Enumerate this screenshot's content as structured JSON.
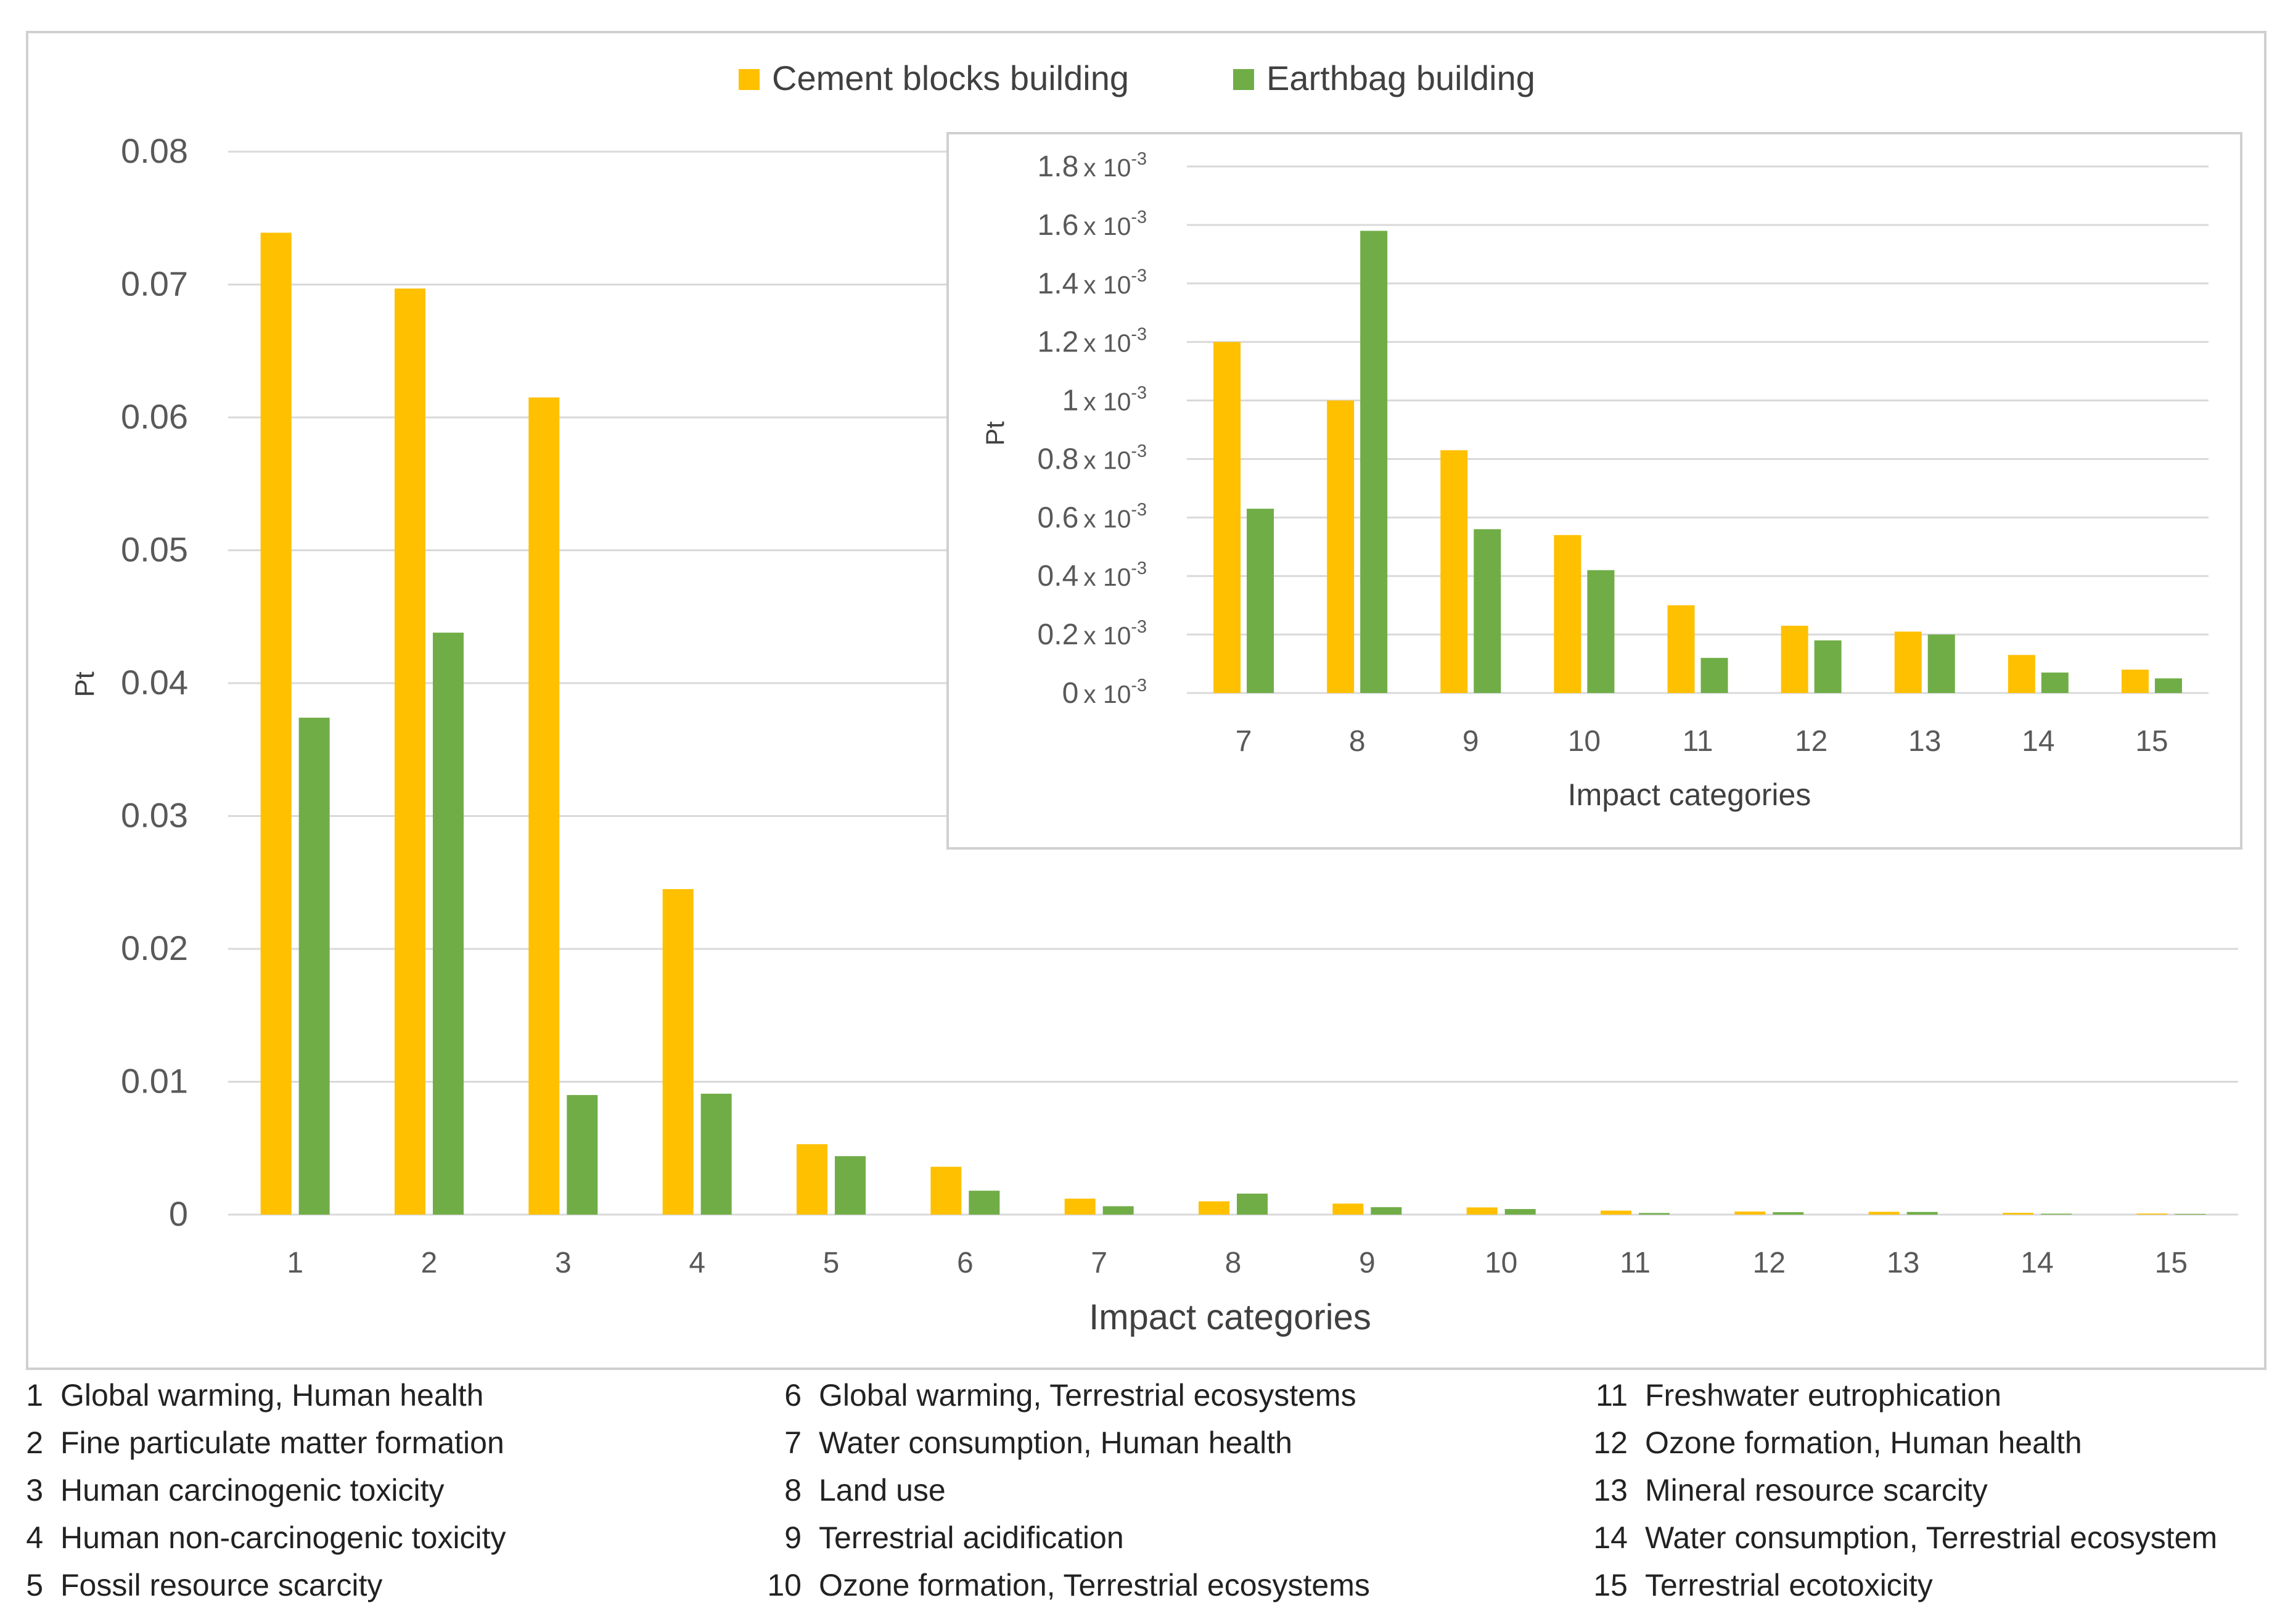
{
  "chart_data": [
    {
      "id": "main",
      "type": "bar",
      "categories": [
        "1",
        "2",
        "3",
        "4",
        "5",
        "6",
        "7",
        "8",
        "9",
        "10",
        "11",
        "12",
        "13",
        "14",
        "15"
      ],
      "series": [
        {
          "name": "Cement blocks building",
          "color": "#FFC000",
          "values": [
            0.0739,
            0.0697,
            0.0615,
            0.0245,
            0.0053,
            0.0036,
            0.0012,
            0.001,
            0.00083,
            0.00054,
            0.0003,
            0.00023,
            0.00021,
            0.00013,
            8e-05
          ]
        },
        {
          "name": "Earthbag building",
          "color": "#70AD47",
          "values": [
            0.0374,
            0.0438,
            0.009,
            0.0091,
            0.0044,
            0.0018,
            0.00063,
            0.00158,
            0.00056,
            0.00042,
            0.00012,
            0.00018,
            0.0002,
            7e-05,
            5e-05
          ]
        }
      ],
      "ylabel": "Pt",
      "xlabel": "Impact categories",
      "ylim": [
        0,
        0.08
      ],
      "yticks": [
        "0",
        "0.01",
        "0.02",
        "0.03",
        "0.04",
        "0.05",
        "0.06",
        "0.07",
        "0.08"
      ],
      "grid": true,
      "legend": "top-center"
    },
    {
      "id": "inset",
      "type": "bar",
      "categories": [
        "7",
        "8",
        "9",
        "10",
        "11",
        "12",
        "13",
        "14",
        "15"
      ],
      "series": [
        {
          "name": "Cement blocks building",
          "color": "#FFC000",
          "values": [
            1.2,
            1.0,
            0.83,
            0.54,
            0.3,
            0.23,
            0.21,
            0.13,
            0.08
          ]
        },
        {
          "name": "Earthbag building",
          "color": "#70AD47",
          "values": [
            0.63,
            1.58,
            0.56,
            0.42,
            0.12,
            0.18,
            0.2,
            0.07,
            0.05
          ]
        }
      ],
      "ylabel": "Pt",
      "xlabel": "Impact categories",
      "ylim": [
        0,
        1.8
      ],
      "yticks": [
        "0",
        "0.2",
        "0.4",
        "0.6",
        "0.8",
        "1",
        "1.2",
        "1.4",
        "1.6",
        "1.8"
      ],
      "ytick_unit": "x 10",
      "ytick_exp": "-3",
      "grid": true
    }
  ],
  "category_key": {
    "col1": [
      {
        "num": "1",
        "label": "Global warming, Human health"
      },
      {
        "num": "2",
        "label": "Fine particulate matter formation"
      },
      {
        "num": "3",
        "label": "Human carcinogenic toxicity"
      },
      {
        "num": "4",
        "label": "Human non-carcinogenic toxicity"
      },
      {
        "num": "5",
        "label": "Fossil resource scarcity"
      }
    ],
    "col2": [
      {
        "num": "6",
        "label": "Global warming, Terrestrial ecosystems"
      },
      {
        "num": "7",
        "label": "Water consumption, Human health"
      },
      {
        "num": "8",
        "label": "Land use"
      },
      {
        "num": "9",
        "label": "Terrestrial acidification"
      },
      {
        "num": "10",
        "label": "Ozone formation, Terrestrial ecosystems"
      }
    ],
    "col3": [
      {
        "num": "11",
        "label": "Freshwater eutrophication"
      },
      {
        "num": "12",
        "label": "Ozone formation, Human health"
      },
      {
        "num": "13",
        "label": "Mineral resource scarcity"
      },
      {
        "num": "14",
        "label": "Water consumption, Terrestrial ecosystem"
      },
      {
        "num": "15",
        "label": "Terrestrial ecotoxicity"
      }
    ]
  }
}
